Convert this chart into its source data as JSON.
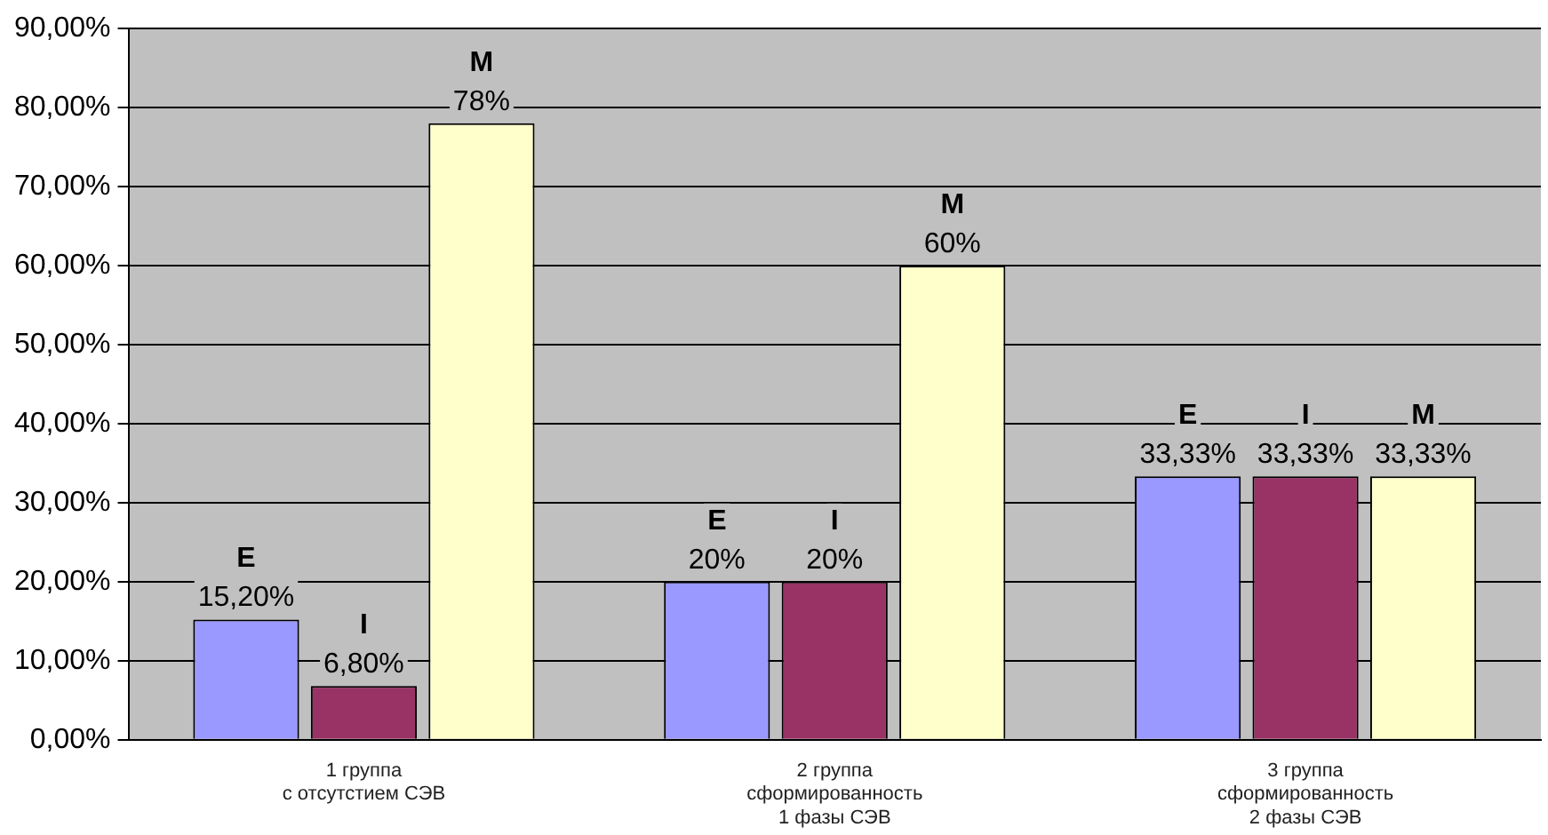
{
  "chart_data": {
    "type": "bar",
    "categories": [
      "1 группа\nс отсутстием СЭВ",
      "2 группа\nсформированность\n1 фазы СЭВ",
      "3 группа\nсформированность\n2 фазы СЭВ"
    ],
    "series": [
      {
        "name": "E",
        "color": "#9999ff",
        "values": [
          15.2,
          20,
          33.33
        ],
        "value_labels": [
          "15,20%",
          "20%",
          "33,33%"
        ]
      },
      {
        "name": "I",
        "color": "#993366",
        "values": [
          6.8,
          20,
          33.33
        ],
        "value_labels": [
          "6,80%",
          "20%",
          "33,33%"
        ]
      },
      {
        "name": "M",
        "color": "#ffffcc",
        "values": [
          78,
          60,
          33.33
        ],
        "value_labels": [
          "78%",
          "60%",
          "33,33%"
        ]
      }
    ],
    "ylim": [
      0,
      90
    ],
    "yticks": [
      {
        "value": 0,
        "label": "0,00%"
      },
      {
        "value": 10,
        "label": "10,00%"
      },
      {
        "value": 20,
        "label": "20,00%"
      },
      {
        "value": 30,
        "label": "30,00%"
      },
      {
        "value": 40,
        "label": "40,00%"
      },
      {
        "value": 50,
        "label": "50,00%"
      },
      {
        "value": 60,
        "label": "60,00%"
      },
      {
        "value": 70,
        "label": "70,00%"
      },
      {
        "value": 80,
        "label": "80,00%"
      },
      {
        "value": 90,
        "label": "90,00%"
      }
    ],
    "grid": "y",
    "legend": false
  }
}
